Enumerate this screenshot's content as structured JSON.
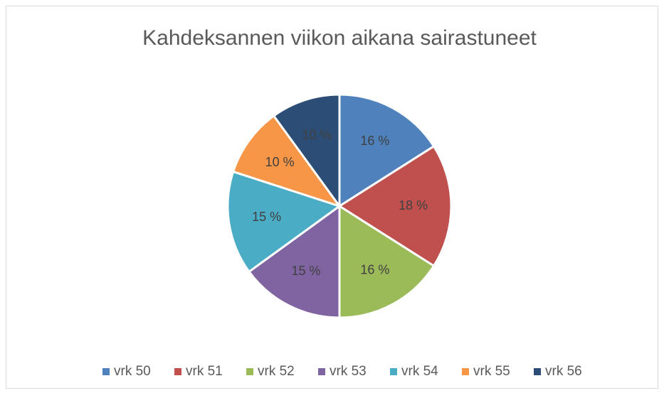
{
  "chart_data": {
    "type": "pie",
    "title": "Kahdeksannen viikon aikana sairastuneet",
    "categories": [
      "vrk 50",
      "vrk 51",
      "vrk 52",
      "vrk 53",
      "vrk 54",
      "vrk 55",
      "vrk 56"
    ],
    "values": [
      16,
      18,
      16,
      15,
      15,
      10,
      10
    ],
    "value_labels": [
      "16 %",
      "18 %",
      "16 %",
      "15 %",
      "15 %",
      "10 %",
      "10 %"
    ],
    "colors": [
      "#4f81bd",
      "#c0504d",
      "#9bbb59",
      "#8064a2",
      "#4bacc6",
      "#f79646",
      "#2c4d75"
    ],
    "legend": "bottom"
  }
}
